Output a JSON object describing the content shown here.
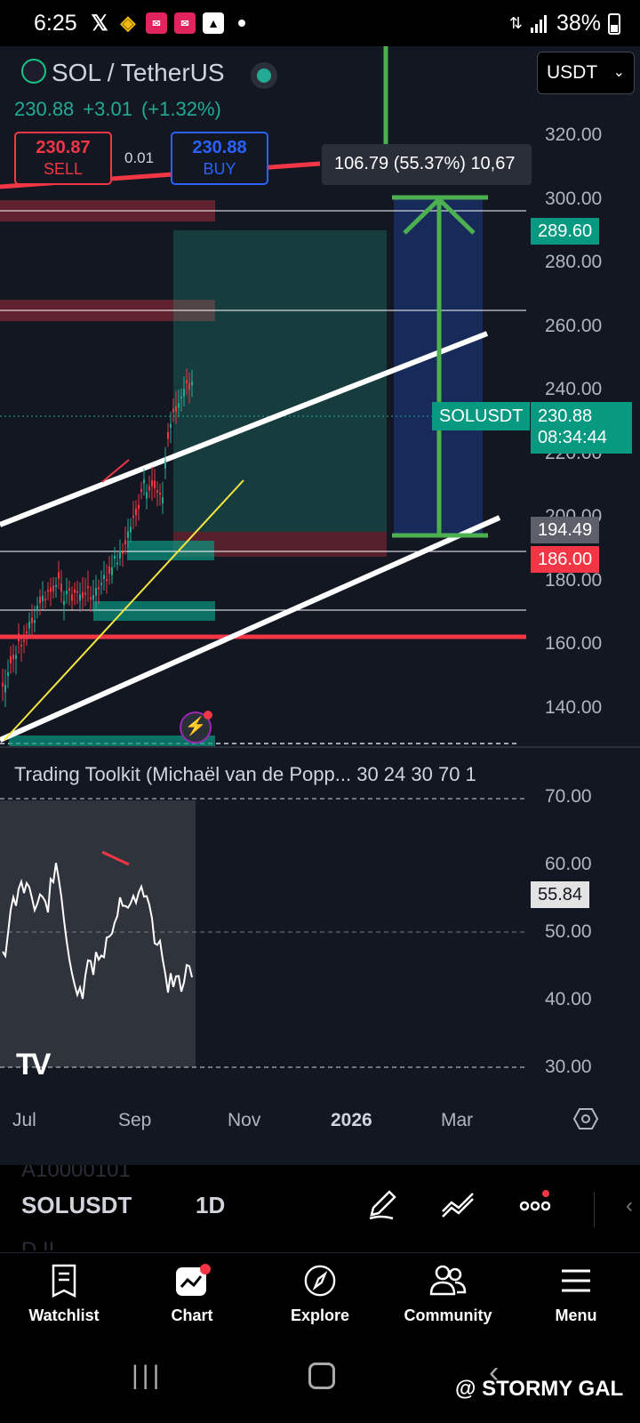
{
  "status_bar": {
    "time": "6:25",
    "battery": "38%",
    "icons": [
      "x-icon",
      "binance-icon",
      "app-notification-icon",
      "app-notification-icon",
      "gallery-icon"
    ]
  },
  "header": {
    "symbol_title": "SOL / TetherUS",
    "last_price": "230.88",
    "change": "+3.01",
    "change_pct": "(+1.32%)",
    "sell_price": "230.87",
    "sell_label": "SELL",
    "spread": "0.01",
    "buy_price": "230.88",
    "buy_label": "BUY",
    "currency": "USDT"
  },
  "measure_tooltip": "106.79 (55.37%) 10,67",
  "price_tags": {
    "target": "289.60",
    "symbol": "SOLUSDT",
    "current_price": "230.88",
    "countdown": "08:34:44",
    "entry": "194.49",
    "stop": "186.00"
  },
  "price_axis": [
    "320.00",
    "300.00",
    "280.00",
    "260.00",
    "240.00",
    "220.00",
    "200.00",
    "180.00",
    "160.00",
    "140.00"
  ],
  "indicator": {
    "title": "Trading Toolkit (Michaël van de Popp... 30 24 30 70 1",
    "axis": [
      "70.00",
      "60.00",
      "50.00",
      "40.00",
      "30.00"
    ],
    "value": "55.84"
  },
  "time_axis": [
    "Jul",
    "Sep",
    "Nov",
    "2026",
    "Mar"
  ],
  "toolbar": {
    "ghost_top": "A10000101",
    "ghost_bottom": "D.II",
    "symbol": "SOLUSDT",
    "interval": "1D"
  },
  "nav": [
    {
      "label": "Watchlist",
      "icon": "watchlist-icon"
    },
    {
      "label": "Chart",
      "icon": "chart-icon"
    },
    {
      "label": "Explore",
      "icon": "compass-icon"
    },
    {
      "label": "Community",
      "icon": "community-icon"
    },
    {
      "label": "Menu",
      "icon": "menu-icon"
    }
  ],
  "watermark": "@ STORMY GAL",
  "colors": {
    "background": "#131722",
    "up": "#22ab94",
    "down": "#f23645",
    "buy": "#2962ff",
    "target_green": "#4caf50"
  }
}
